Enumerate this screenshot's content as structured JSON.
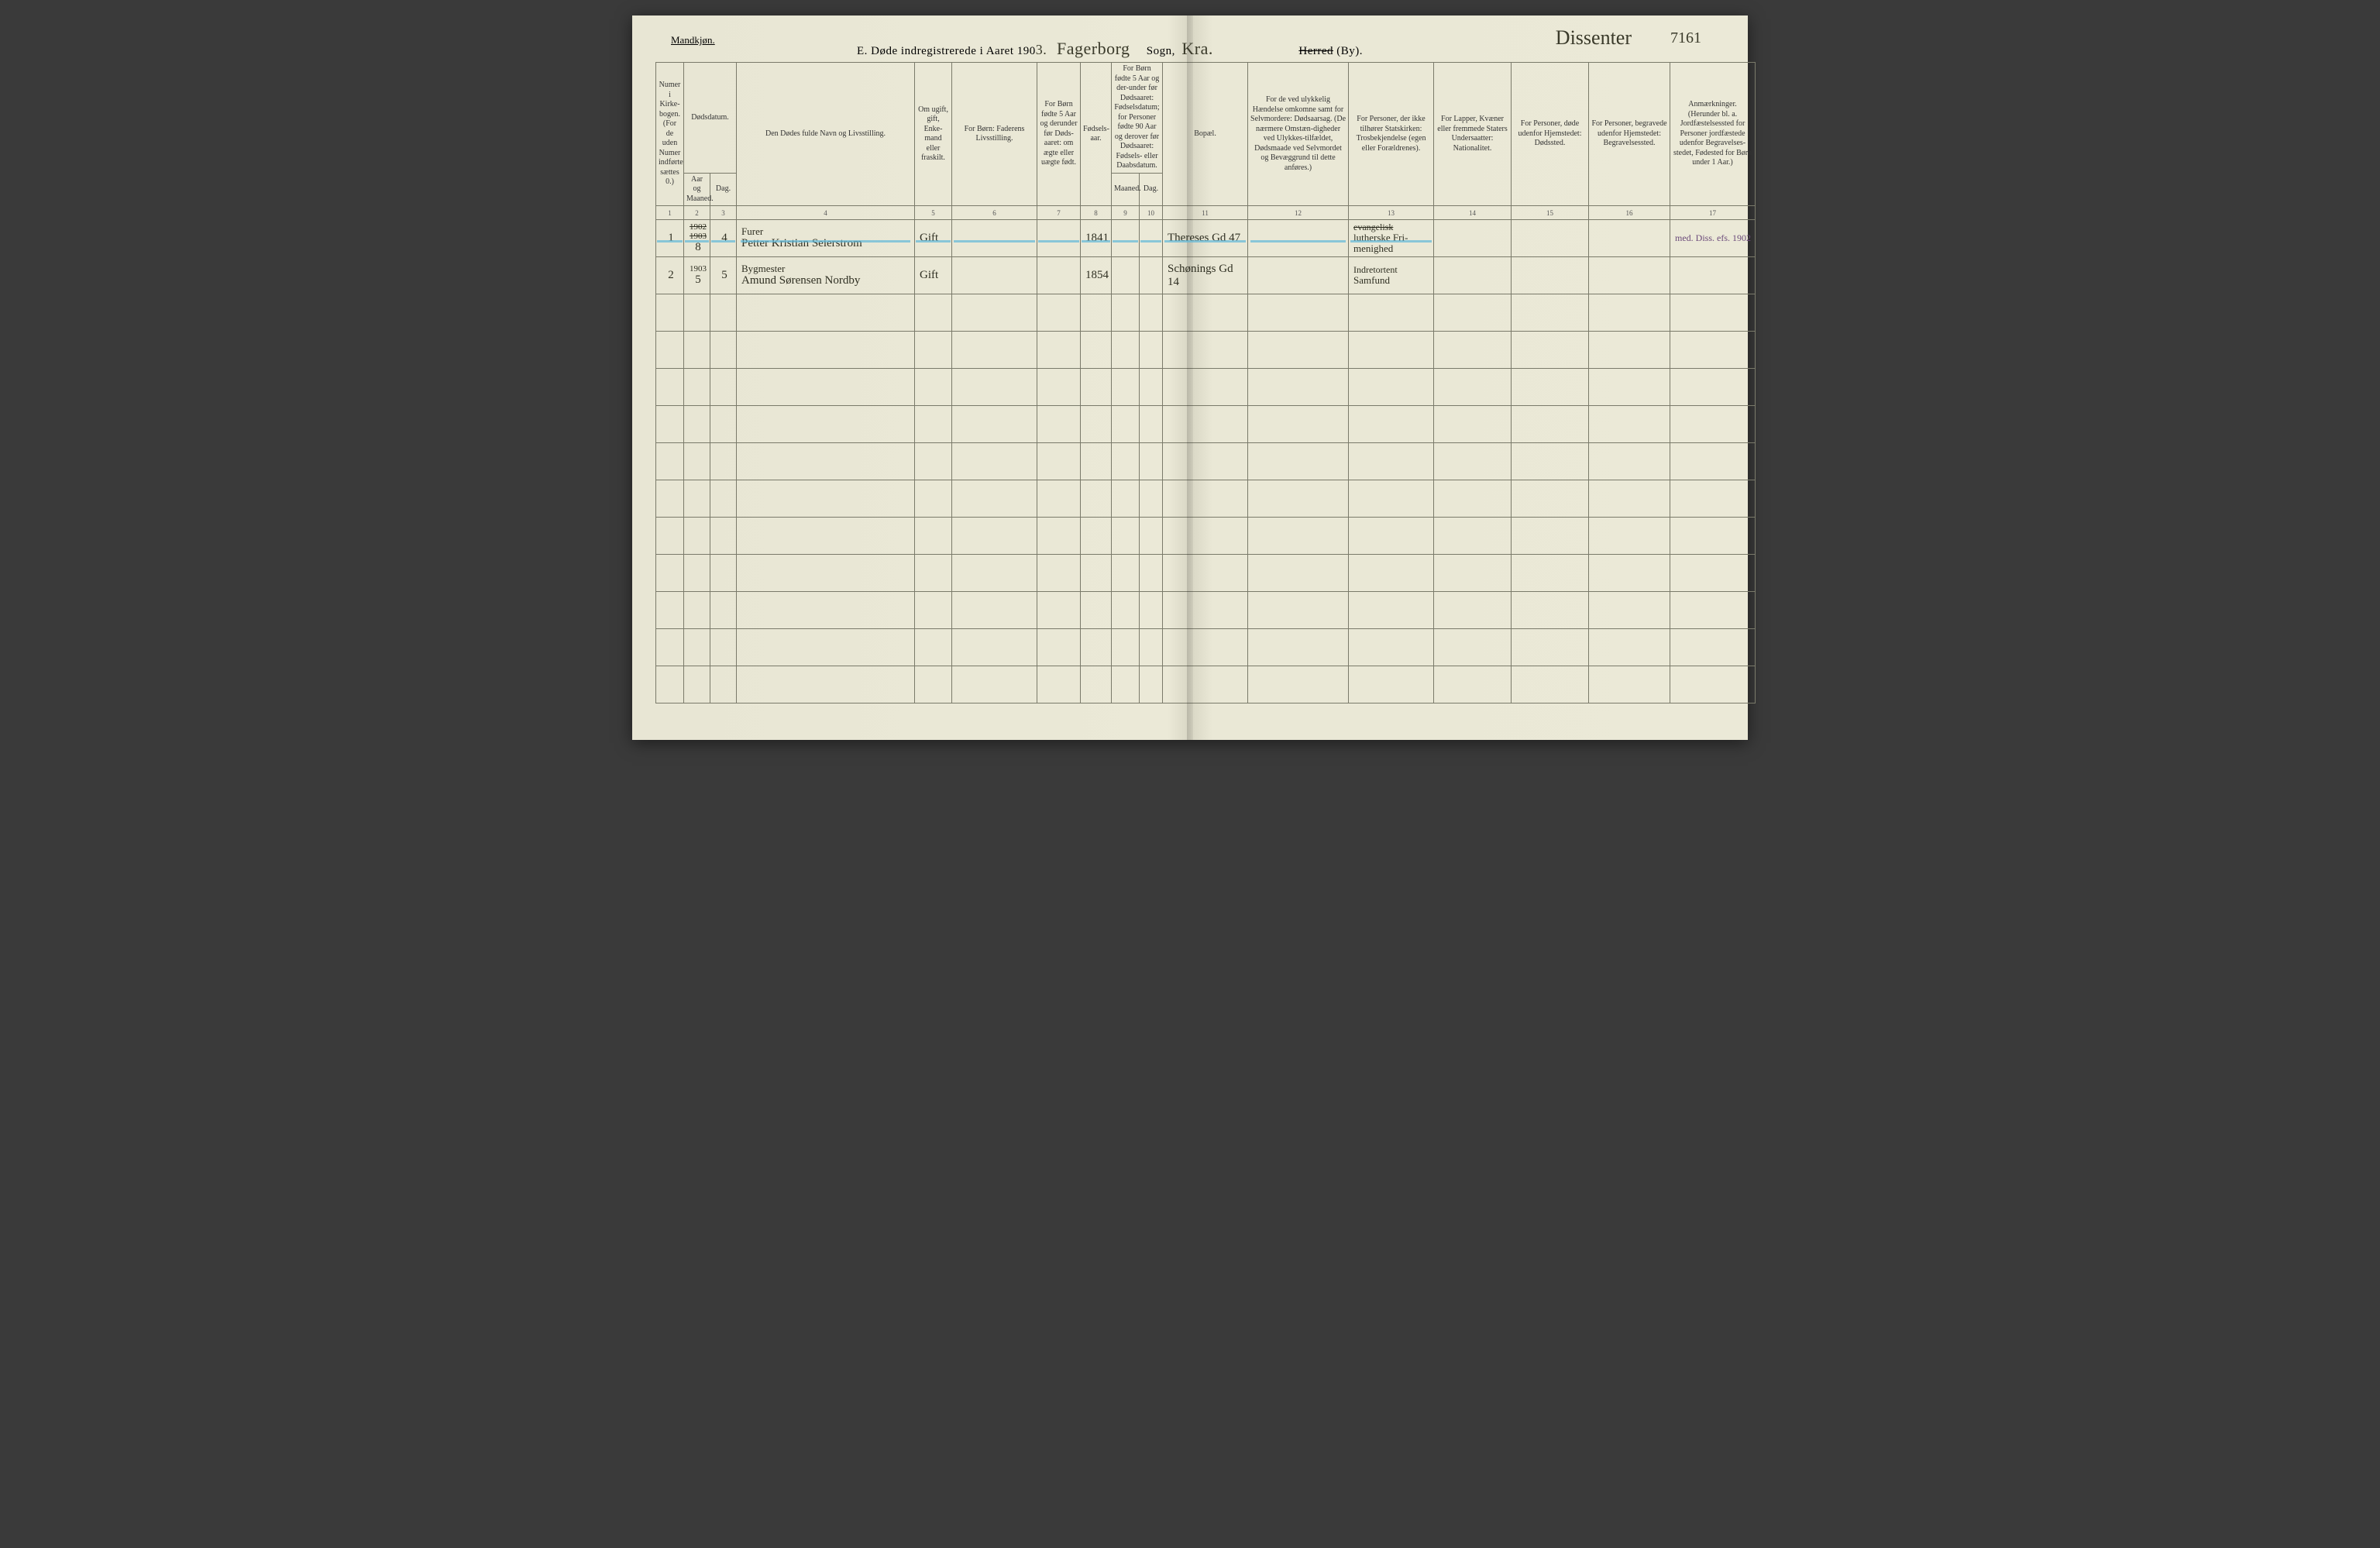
{
  "header": {
    "gender": "Mandkjøn.",
    "title_prefix": "E.  Døde indregistrerede i Aaret 190",
    "year_suffix": "3.",
    "parish_hw": "Fagerborg",
    "sogn_label": "Sogn,",
    "city_hw": "Kra.",
    "herred_strike": "Herred",
    "by_label": "(By).",
    "dissenter": "Dissenter",
    "page_number": "7161"
  },
  "columns": {
    "c1": "Numer i Kirke-bogen. (For de uden Numer indførte sættes 0.)",
    "c2": "Dødsdatum.",
    "c2a": "Aar og Maaned.",
    "c2b": "Dag.",
    "c4": "Den Dødes fulde Navn og Livsstilling.",
    "c5": "Om ugift, gift, Enke-mand eller fraskilt.",
    "c6": "For Børn: Faderens Livsstilling.",
    "c7": "For Børn fødte 5 Aar og derunder før Døds-aaret: om ægte eller uægte født.",
    "c8": "Fødsels-aar.",
    "c9_10": "For Børn fødte 5 Aar og der-under før Dødsaaret: Fødselsdatum; for Personer fødte 90 Aar og derover før Dødsaaret: Fødsels- eller Daabsdatum.",
    "c9": "Maaned.",
    "c10": "Dag.",
    "c11": "Bopæl.",
    "c12": "For de ved ulykkelig Hændelse omkomne samt for Selvmordere: Dødsaarsag. (De nærmere Omstæn-digheder ved Ulykkes-tilfældet, Dødsmaade ved Selvmordet og Bevæggrund til dette anføres.)",
    "c13": "For Personer, der ikke tilhører Statskirken: Trosbekjendelse (egen eller Forældrenes).",
    "c14": "For Lapper, Kvæner eller fremmede Staters Undersaatter: Nationalitet.",
    "c15": "For Personer, døde udenfor Hjemstedet: Dødssted.",
    "c16": "For Personer, begravede udenfor Hjemstedet: Begravelsessted.",
    "c17": "Anmærkninger. (Herunder bl. a. Jordfæstelsessted for Personer jordfæstede udenfor Begravelses-stedet, Fødested for Børn under 1 Aar.)"
  },
  "colnums": [
    "1",
    "2",
    "3",
    "4",
    "5",
    "6",
    "7",
    "8",
    "9",
    "10",
    "11",
    "12",
    "13",
    "14",
    "15",
    "16",
    "17"
  ],
  "rows": [
    {
      "num": "1",
      "year_strike": "1902\n1903",
      "month": "8",
      "day": "4",
      "name_top": "Furer",
      "name": "Petter Kristian Seierstrom",
      "civil": "Gift",
      "father": "",
      "child": "",
      "birth_year": "1841",
      "cm": "",
      "cd": "",
      "residence": "Thereses Gd 47",
      "cause": "",
      "faith_top": "evangelisk",
      "faith": "lutherske Fri-menighed",
      "nat": "",
      "death_place": "",
      "burial_place": "",
      "notes": "med. Diss. efs. 1902"
    },
    {
      "num": "2",
      "year": "1903",
      "month": "5",
      "day": "5",
      "name_top": "Bygmester",
      "name": "Amund Sørensen Nordby",
      "civil": "Gift",
      "father": "",
      "child": "",
      "birth_year": "1854",
      "cm": "",
      "cd": "",
      "residence": "Schønings Gd 14",
      "cause": "",
      "faith_top": "Indretortent",
      "faith": "Samfund",
      "nat": "",
      "death_place": "",
      "burial_place": "",
      "notes": ""
    }
  ],
  "empty_rows": 11,
  "colors": {
    "paper": "#ebe9d7",
    "ink": "#2f2f22",
    "rule": "#7a7a6a",
    "blue_pencil": "#5fb8d8",
    "violet_ink": "#6b4a7a"
  }
}
